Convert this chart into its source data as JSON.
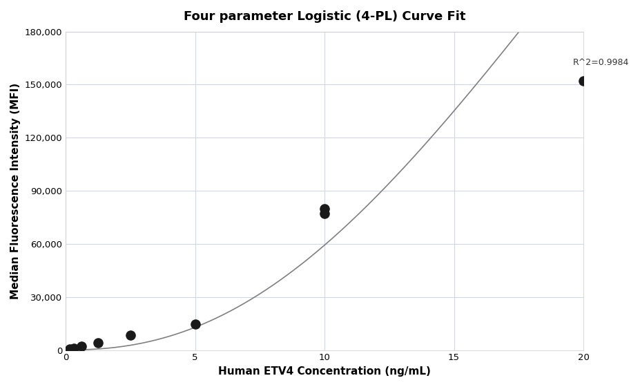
{
  "title": "Four parameter Logistic (4-PL) Curve Fit",
  "xlabel": "Human ETV4 Concentration (ng/mL)",
  "ylabel": "Median Fluorescence Intensity (MFI)",
  "scatter_x": [
    0.156,
    0.313,
    0.625,
    1.25,
    2.5,
    5.0,
    10.0,
    10.0,
    20.0
  ],
  "scatter_y": [
    500,
    1200,
    2200,
    4200,
    8500,
    14500,
    77000,
    80000,
    152000
  ],
  "r_squared": "R^2=0.9984",
  "r2_x": 19.6,
  "r2_y": 160000,
  "xlim": [
    0,
    20
  ],
  "ylim": [
    0,
    180000
  ],
  "xticks": [
    0,
    5,
    10,
    15,
    20
  ],
  "yticks": [
    0,
    30000,
    60000,
    90000,
    120000,
    150000,
    180000
  ],
  "4pl_params": {
    "A": 100,
    "B": 2.3,
    "C": 30.0,
    "D": 800000
  },
  "curve_color": "#808080",
  "scatter_color": "#1a1a1a",
  "grid_color": "#d0d8e8",
  "bg_color": "#ffffff",
  "title_fontsize": 13,
  "label_fontsize": 11,
  "annotation_fontsize": 9
}
